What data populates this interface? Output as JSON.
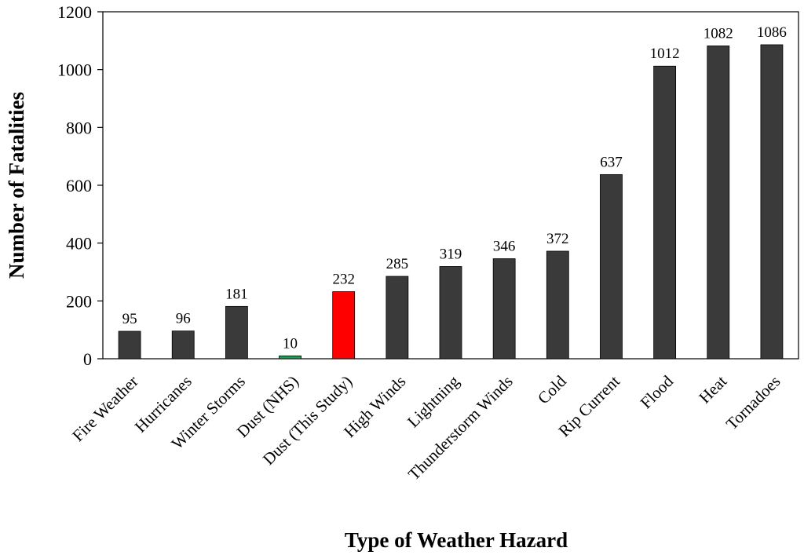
{
  "chart_data": {
    "type": "bar",
    "title": "",
    "xlabel": "Type of Weather Hazard",
    "ylabel": "Number of Fatalities",
    "ylim": [
      0,
      1200
    ],
    "yticks": [
      0,
      200,
      400,
      600,
      800,
      1000,
      1200
    ],
    "grid": false,
    "legend": "none",
    "categories": [
      "Fire Weather",
      "Hurricanes",
      "Winter Storms",
      "Dust (NHS)",
      "Dust (This Study)",
      "High Winds",
      "Lightning",
      "Thunderstorm Winds",
      "Cold",
      "Rip Current",
      "Flood",
      "Heat",
      "Tornadoes"
    ],
    "values": [
      95,
      96,
      181,
      10,
      232,
      285,
      319,
      346,
      372,
      637,
      1012,
      1082,
      1086
    ],
    "bar_colors": [
      "#3a3a3a",
      "#3a3a3a",
      "#3a3a3a",
      "#1e9e50",
      "#ff0000",
      "#3a3a3a",
      "#3a3a3a",
      "#3a3a3a",
      "#3a3a3a",
      "#3a3a3a",
      "#3a3a3a",
      "#3a3a3a",
      "#3a3a3a"
    ]
  }
}
